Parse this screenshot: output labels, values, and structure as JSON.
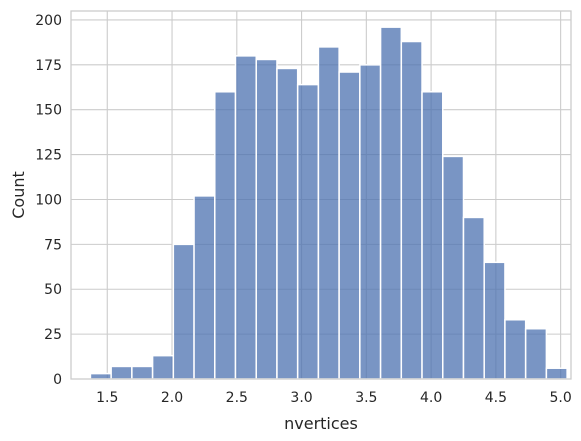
{
  "chart_data": {
    "type": "histogram",
    "title": "",
    "xlabel": "nvertices",
    "ylabel": "Count",
    "xlim": [
      1.22,
      5.08
    ],
    "ylim": [
      0,
      205
    ],
    "xticks": [
      1.5,
      2.0,
      2.5,
      3.0,
      3.5,
      4.0,
      4.5,
      5.0
    ],
    "xtick_labels": [
      "1.5",
      "2.0",
      "2.5",
      "3.0",
      "3.5",
      "4.0",
      "4.5",
      "5.0"
    ],
    "yticks": [
      0,
      25,
      50,
      75,
      100,
      125,
      150,
      175,
      200
    ],
    "ytick_labels": [
      "0",
      "25",
      "50",
      "75",
      "100",
      "125",
      "150",
      "175",
      "200"
    ],
    "grid": true,
    "bar_color": "#4c72b0",
    "bins": [
      {
        "x0": 1.37,
        "x1": 1.53,
        "count": 3
      },
      {
        "x0": 1.53,
        "x1": 1.69,
        "count": 7
      },
      {
        "x0": 1.69,
        "x1": 1.85,
        "count": 7
      },
      {
        "x0": 1.85,
        "x1": 2.01,
        "count": 13
      },
      {
        "x0": 2.01,
        "x1": 2.17,
        "count": 75
      },
      {
        "x0": 2.17,
        "x1": 2.33,
        "count": 102
      },
      {
        "x0": 2.33,
        "x1": 2.49,
        "count": 160
      },
      {
        "x0": 2.49,
        "x1": 2.65,
        "count": 180
      },
      {
        "x0": 2.65,
        "x1": 2.81,
        "count": 178
      },
      {
        "x0": 2.81,
        "x1": 2.97,
        "count": 173
      },
      {
        "x0": 2.97,
        "x1": 3.13,
        "count": 164
      },
      {
        "x0": 3.13,
        "x1": 3.29,
        "count": 185
      },
      {
        "x0": 3.29,
        "x1": 3.45,
        "count": 171
      },
      {
        "x0": 3.45,
        "x1": 3.61,
        "count": 175
      },
      {
        "x0": 3.61,
        "x1": 3.77,
        "count": 196
      },
      {
        "x0": 3.77,
        "x1": 3.93,
        "count": 188
      },
      {
        "x0": 3.93,
        "x1": 4.09,
        "count": 160
      },
      {
        "x0": 4.09,
        "x1": 4.25,
        "count": 124
      },
      {
        "x0": 4.25,
        "x1": 4.41,
        "count": 90
      },
      {
        "x0": 4.41,
        "x1": 4.57,
        "count": 65
      },
      {
        "x0": 4.57,
        "x1": 4.73,
        "count": 33
      },
      {
        "x0": 4.73,
        "x1": 4.89,
        "count": 28
      },
      {
        "x0": 4.89,
        "x1": 5.05,
        "count": 6
      }
    ]
  }
}
